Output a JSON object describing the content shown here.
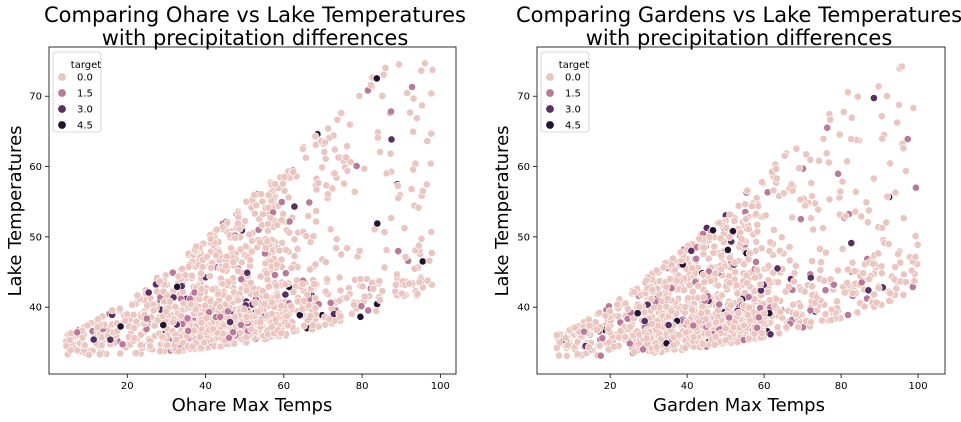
{
  "colors": {
    "hue_0": "#ebc6c0",
    "hue_1_5": "#b97a99",
    "hue_3_0": "#5a2f60",
    "hue_4_5": "#24132e",
    "point_edge": "#ffffff",
    "axis": "#000000"
  },
  "chart_data": [
    {
      "type": "scatter",
      "title_line1": "Comparing Ohare vs Lake Temperatures",
      "title_line2": "with precipitation differences",
      "xlabel": "Ohare Max Temps",
      "ylabel": "Lake Temperatures",
      "xlim": [
        0,
        104
      ],
      "ylim": [
        30.5,
        77
      ],
      "xticks": [
        20,
        40,
        60,
        80,
        100
      ],
      "xtick_labels": [
        "20",
        "40",
        "60",
        "80",
        "100"
      ],
      "yticks": [
        40,
        50,
        60,
        70
      ],
      "ytick_labels": [
        "40",
        "50",
        "60",
        "70"
      ],
      "legend": {
        "title": "target",
        "position": "top-left",
        "entries": [
          {
            "label": "0.0",
            "color_key": "hue_0"
          },
          {
            "label": "1.5",
            "color_key": "hue_1_5"
          },
          {
            "label": "3.0",
            "color_key": "hue_3_0"
          },
          {
            "label": "4.5",
            "color_key": "hue_4_5"
          }
        ]
      },
      "x_range_data": [
        4,
        98
      ],
      "seed": 11
    },
    {
      "type": "scatter",
      "title_line1": "Comparing Gardens vs Lake Temperatures",
      "title_line2": "with precipitation differences",
      "xlabel": "Garden Max Temps",
      "ylabel": "Lake Temperatures",
      "xlim": [
        1,
        107
      ],
      "ylim": [
        30.5,
        77
      ],
      "xticks": [
        20,
        40,
        60,
        80,
        100
      ],
      "xtick_labels": [
        "20",
        "40",
        "60",
        "80",
        "100"
      ],
      "yticks": [
        40,
        50,
        60,
        70
      ],
      "ytick_labels": [
        "40",
        "50",
        "60",
        "70"
      ],
      "legend": {
        "title": "target",
        "position": "top-left",
        "entries": [
          {
            "label": "0.0",
            "color_key": "hue_0"
          },
          {
            "label": "1.5",
            "color_key": "hue_1_5"
          },
          {
            "label": "3.0",
            "color_key": "hue_3_0"
          },
          {
            "label": "4.5",
            "color_key": "hue_4_5"
          }
        ]
      },
      "x_range_data": [
        6,
        100
      ],
      "seed": 29
    }
  ]
}
